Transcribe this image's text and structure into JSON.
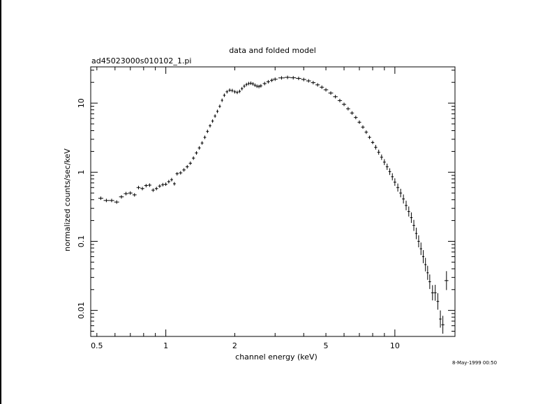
{
  "chart_data": {
    "type": "scatter",
    "title": "data and folded model",
    "subtitle": "ad45023000s010102_1.pi",
    "xlabel": "channel energy (keV)",
    "ylabel": "normalized counts/sec/keV",
    "xscale": "log",
    "yscale": "log",
    "xlim": [
      0.47,
      18.3
    ],
    "ylim": [
      0.0042,
      33.5
    ],
    "grid": false,
    "x_ticks": [
      {
        "value": 0.5,
        "label": "0.5"
      },
      {
        "value": 1,
        "label": "1"
      },
      {
        "value": 2,
        "label": "2"
      },
      {
        "value": 5,
        "label": "5"
      },
      {
        "value": 10,
        "label": "10"
      }
    ],
    "y_ticks": [
      {
        "value": 0.01,
        "label": "0.01"
      },
      {
        "value": 0.1,
        "label": "0.1"
      },
      {
        "value": 1,
        "label": "1"
      },
      {
        "value": 10,
        "label": "10"
      }
    ],
    "series": [
      {
        "points": [
          [
            0.52,
            0.42
          ],
          [
            0.55,
            0.39
          ],
          [
            0.58,
            0.39
          ],
          [
            0.61,
            0.37
          ],
          [
            0.64,
            0.44
          ],
          [
            0.67,
            0.49
          ],
          [
            0.7,
            0.5
          ],
          [
            0.73,
            0.47
          ],
          [
            0.76,
            0.6
          ],
          [
            0.79,
            0.58
          ],
          [
            0.82,
            0.64
          ],
          [
            0.85,
            0.65
          ],
          [
            0.88,
            0.55
          ],
          [
            0.91,
            0.58
          ],
          [
            0.94,
            0.63
          ],
          [
            0.97,
            0.66
          ],
          [
            1.0,
            0.67
          ],
          [
            1.03,
            0.73
          ],
          [
            1.06,
            0.78
          ],
          [
            1.09,
            0.68
          ],
          [
            1.12,
            0.95
          ],
          [
            1.16,
            0.98
          ],
          [
            1.2,
            1.08
          ],
          [
            1.24,
            1.2
          ],
          [
            1.28,
            1.35
          ],
          [
            1.32,
            1.6
          ],
          [
            1.36,
            1.9
          ],
          [
            1.4,
            2.25
          ],
          [
            1.44,
            2.65
          ],
          [
            1.48,
            3.2
          ],
          [
            1.52,
            3.9
          ],
          [
            1.56,
            4.7
          ],
          [
            1.6,
            5.5
          ],
          [
            1.64,
            6.5
          ],
          [
            1.68,
            7.6
          ],
          [
            1.72,
            9.0
          ],
          [
            1.76,
            11.0
          ],
          [
            1.8,
            13.0
          ],
          [
            1.85,
            14.6
          ],
          [
            1.9,
            15.4
          ],
          [
            1.95,
            15.2
          ],
          [
            2.0,
            14.6
          ],
          [
            2.05,
            14.3
          ],
          [
            2.1,
            14.8
          ],
          [
            2.15,
            16.2
          ],
          [
            2.2,
            17.6
          ],
          [
            2.25,
            18.6
          ],
          [
            2.3,
            19.2
          ],
          [
            2.35,
            19.4
          ],
          [
            2.4,
            19.0
          ],
          [
            2.45,
            18.2
          ],
          [
            2.5,
            17.6
          ],
          [
            2.55,
            17.4
          ],
          [
            2.6,
            17.8
          ],
          [
            2.7,
            19.2
          ],
          [
            2.8,
            20.4
          ],
          [
            2.9,
            21.4
          ],
          [
            3.0,
            22.2
          ],
          [
            3.2,
            23.2
          ],
          [
            3.4,
            23.6
          ],
          [
            3.6,
            23.3
          ],
          [
            3.8,
            22.8
          ],
          [
            4.0,
            22.0
          ],
          [
            4.2,
            21.0
          ],
          [
            4.4,
            19.8
          ],
          [
            4.6,
            18.4
          ],
          [
            4.8,
            17.0
          ],
          [
            5.0,
            15.6
          ],
          [
            5.25,
            14.0
          ],
          [
            5.5,
            12.4
          ],
          [
            5.75,
            10.9
          ],
          [
            6.0,
            9.6
          ],
          [
            6.25,
            8.3
          ],
          [
            6.5,
            7.2
          ],
          [
            6.75,
            6.2
          ],
          [
            7.0,
            5.3
          ],
          [
            7.25,
            4.5
          ],
          [
            7.5,
            3.8
          ],
          [
            7.75,
            3.2
          ],
          [
            8.0,
            2.7
          ],
          [
            8.25,
            2.3
          ],
          [
            8.5,
            1.95
          ],
          [
            8.75,
            1.65
          ],
          [
            9.0,
            1.4
          ],
          [
            9.25,
            1.2
          ],
          [
            9.5,
            1.02
          ],
          [
            9.75,
            0.86
          ],
          [
            10.0,
            0.72
          ],
          [
            10.3,
            0.6
          ],
          [
            10.6,
            0.5
          ],
          [
            10.9,
            0.41
          ],
          [
            11.2,
            0.33
          ],
          [
            11.5,
            0.27
          ],
          [
            11.8,
            0.22
          ],
          [
            12.1,
            0.17
          ],
          [
            12.4,
            0.13
          ],
          [
            12.7,
            0.1
          ],
          [
            13.0,
            0.078
          ],
          [
            13.3,
            0.06
          ],
          [
            13.6,
            0.046
          ],
          [
            13.9,
            0.035
          ],
          [
            14.2,
            0.026
          ],
          [
            14.6,
            0.018
          ],
          [
            15.0,
            0.018
          ],
          [
            15.4,
            0.0135
          ],
          [
            15.8,
            0.0075
          ],
          [
            16.2,
            0.0062
          ],
          [
            16.8,
            0.027
          ]
        ]
      }
    ]
  },
  "page": {
    "title": "data and folded model",
    "file_label": "ad45023000s010102_1.pi",
    "date_stamp": "8-May-1999 00:50"
  }
}
